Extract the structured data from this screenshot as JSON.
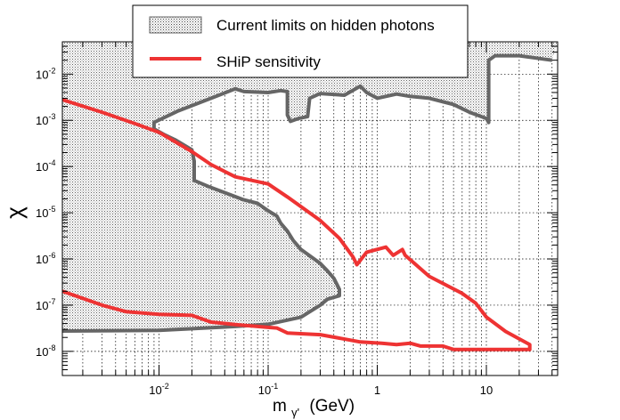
{
  "chart_data": {
    "type": "line",
    "xlabel": {
      "base": "m",
      "sub": "γ'",
      "unit": "(GeV)"
    },
    "ylabel": "χ",
    "x_scale": "log",
    "y_scale": "log",
    "xlim": [
      0.0013,
      45
    ],
    "ylim": [
      3e-09,
      0.05
    ],
    "grid": true,
    "legend_placement": "top-center",
    "x_tick_labels": [
      {
        "value": 0.01,
        "base": "10",
        "exp": "-2"
      },
      {
        "value": 0.1,
        "base": "10",
        "exp": "-1"
      },
      {
        "value": 1,
        "base": "1",
        "exp": ""
      },
      {
        "value": 10,
        "base": "10",
        "exp": ""
      }
    ],
    "y_tick_labels": [
      {
        "value": 0.01,
        "base": "10",
        "exp": "-2"
      },
      {
        "value": 0.001,
        "base": "10",
        "exp": "-3"
      },
      {
        "value": 0.0001,
        "base": "10",
        "exp": "-4"
      },
      {
        "value": 1e-05,
        "base": "10",
        "exp": "-5"
      },
      {
        "value": 1e-06,
        "base": "10",
        "exp": "-6"
      },
      {
        "value": 1e-07,
        "base": "10",
        "exp": "-7"
      },
      {
        "value": 1e-08,
        "base": "10",
        "exp": "-8"
      }
    ],
    "series": [
      {
        "name": "Current limits on hidden photons",
        "style": "hatched-region",
        "color": "#666666",
        "points": [
          [
            0.0013,
            2.75e-08
          ],
          [
            0.01,
            2.85e-08
          ],
          [
            0.05,
            3.45e-08
          ],
          [
            0.1,
            3.85e-08
          ],
          [
            0.2,
            5.5e-08
          ],
          [
            0.3,
            1e-07
          ],
          [
            0.35,
            1.35e-07
          ],
          [
            0.45,
            1.6e-07
          ],
          [
            0.45,
            2.2e-07
          ],
          [
            0.4,
            3.8e-07
          ],
          [
            0.35,
            5.5e-07
          ],
          [
            0.3,
            8e-07
          ],
          [
            0.2,
            1.6e-06
          ],
          [
            0.17,
            2.5e-06
          ],
          [
            0.15,
            4e-06
          ],
          [
            0.13,
            6e-06
          ],
          [
            0.12,
            8.5e-06
          ],
          [
            0.1,
            1.1e-05
          ],
          [
            0.08,
            1.6e-05
          ],
          [
            0.06,
            1.9e-05
          ],
          [
            0.03,
            3.5e-05
          ],
          [
            0.021,
            5e-05
          ],
          [
            0.021,
            0.00013
          ],
          [
            0.02,
            0.00023
          ],
          [
            0.014,
            0.00038
          ],
          [
            0.011,
            0.0005
          ],
          [
            0.009,
            0.00065
          ],
          [
            0.009,
            0.0009
          ],
          [
            0.015,
            0.0016
          ],
          [
            0.03,
            0.003
          ],
          [
            0.05,
            0.0048
          ],
          [
            0.06,
            0.0042
          ],
          [
            0.1,
            0.004
          ],
          [
            0.13,
            0.0044
          ],
          [
            0.15,
            0.0042
          ],
          [
            0.15,
            0.0013
          ],
          [
            0.16,
            0.00095
          ],
          [
            0.19,
            0.0011
          ],
          [
            0.23,
            0.0012
          ],
          [
            0.24,
            0.003
          ],
          [
            0.3,
            0.0038
          ],
          [
            0.5,
            0.0035
          ],
          [
            0.7,
            0.0055
          ],
          [
            0.8,
            0.004
          ],
          [
            1,
            0.003
          ],
          [
            1.5,
            0.0037
          ],
          [
            2,
            0.0033
          ],
          [
            3,
            0.003
          ],
          [
            5,
            0.0022
          ],
          [
            7,
            0.0015
          ],
          [
            10,
            0.0011
          ],
          [
            10.5,
            0.0009
          ],
          [
            10.5,
            0.02
          ],
          [
            12,
            0.025
          ],
          [
            20,
            0.025
          ],
          [
            40,
            0.02
          ]
        ]
      },
      {
        "name": "SHiP sensitivity",
        "style": "line",
        "color": "#ee3333",
        "points": [
          [
            0.0013,
            0.0028
          ],
          [
            0.003,
            0.0015
          ],
          [
            0.006,
            0.00085
          ],
          [
            0.01,
            0.00055
          ],
          [
            0.02,
            0.00021
          ],
          [
            0.03,
            0.00011
          ],
          [
            0.05,
            6e-05
          ],
          [
            0.1,
            4.2e-05
          ],
          [
            0.15,
            2.2e-05
          ],
          [
            0.3,
            6.8e-06
          ],
          [
            0.45,
            2.8e-06
          ],
          [
            0.6,
            1.1e-06
          ],
          [
            0.65,
            7.5e-07
          ],
          [
            0.8,
            1.4e-06
          ],
          [
            1.2,
            1.8e-06
          ],
          [
            1.4,
            1.2e-06
          ],
          [
            1.7,
            1.6e-06
          ],
          [
            1.8,
            1.2e-06
          ],
          [
            3,
            4.2e-07
          ],
          [
            6,
            1.8e-07
          ],
          [
            8,
            1.1e-07
          ],
          [
            10,
            5.5e-08
          ],
          [
            15,
            2.7e-08
          ],
          [
            25,
            1.4e-08
          ],
          [
            25,
            1.1e-08
          ],
          [
            20,
            1.1e-08
          ],
          [
            10,
            1.1e-08
          ],
          [
            6,
            1.1e-08
          ],
          [
            5,
            1.1e-08
          ],
          [
            4,
            1.3e-08
          ],
          [
            2.5,
            1.3e-08
          ],
          [
            2,
            1.5e-08
          ],
          [
            1.5,
            1.4e-08
          ],
          [
            1.1,
            1.5e-08
          ],
          [
            0.7,
            1.6e-08
          ],
          [
            0.3,
            2.3e-08
          ],
          [
            0.15,
            2.5e-08
          ],
          [
            0.12,
            3.2e-08
          ],
          [
            0.1,
            3.3e-08
          ],
          [
            0.05,
            3.8e-08
          ],
          [
            0.03,
            4.3e-08
          ],
          [
            0.02,
            6e-08
          ],
          [
            0.01,
            6.3e-08
          ],
          [
            0.005,
            7.2e-08
          ],
          [
            0.003,
            1e-07
          ],
          [
            0.0013,
            2e-07
          ]
        ]
      }
    ]
  }
}
